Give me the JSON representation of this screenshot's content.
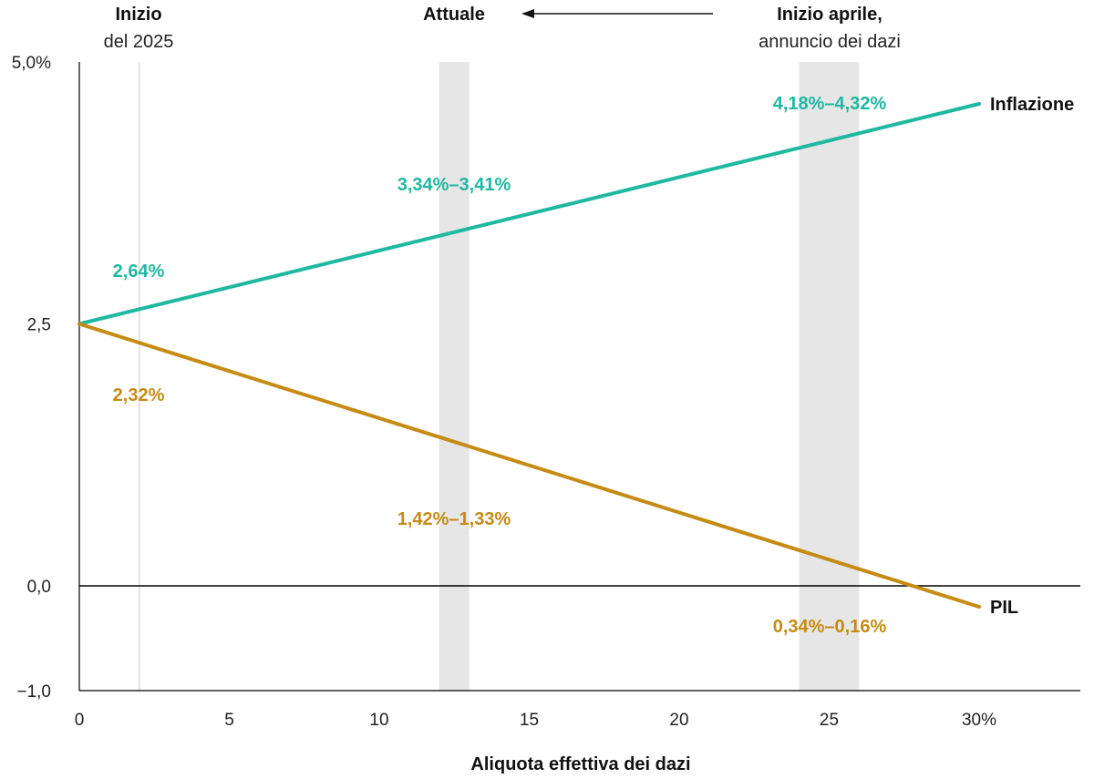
{
  "colors": {
    "inflation": "#1fb8a0",
    "gdp": "#c58b14",
    "band": "#e6e6e6",
    "axis": "#000000",
    "grid": "#dddddd"
  },
  "headers": {
    "start": {
      "title": "Inizio",
      "subtitle": "del 2025"
    },
    "current": {
      "title": "Attuale"
    },
    "april": {
      "title": "Inizio aprile,",
      "subtitle": "annuncio dei dazi"
    }
  },
  "chart_data": {
    "type": "line",
    "xlabel": "Aliquota effettiva dei dazi",
    "ylabel": "",
    "xlim": [
      0,
      33
    ],
    "ylim": [
      -1.0,
      5.0
    ],
    "x_ticks": [
      0,
      5,
      10,
      15,
      20,
      25,
      30
    ],
    "x_tick_labels": [
      "0",
      "5",
      "10",
      "15",
      "20",
      "25",
      "30%"
    ],
    "y_ticks": [
      -1.0,
      0.0,
      2.5,
      5.0
    ],
    "y_tick_labels": [
      "−1,0",
      "0,0",
      "2,5",
      "5,0%"
    ],
    "reference_vline_x": 2,
    "shaded_bands": [
      {
        "x0": 12,
        "x1": 13
      },
      {
        "x0": 24,
        "x1": 26
      }
    ],
    "zero_line": 0.0,
    "series": [
      {
        "name": "Inflazione",
        "x": [
          0,
          30
        ],
        "y": [
          2.5,
          4.6
        ],
        "color": "#1fb8a0"
      },
      {
        "name": "PIL",
        "x": [
          0,
          30
        ],
        "y": [
          2.5,
          -0.2
        ],
        "color": "#c58b14"
      }
    ],
    "annotations": [
      {
        "text": "2,64%",
        "series": "Inflazione"
      },
      {
        "text": "3,34%–3,41%",
        "series": "Inflazione"
      },
      {
        "text": "4,18%–4,32%",
        "series": "Inflazione"
      },
      {
        "text": "2,32%",
        "series": "PIL"
      },
      {
        "text": "1,42%–1,33%",
        "series": "PIL"
      },
      {
        "text": "0,34%–0,16%",
        "series": "PIL"
      }
    ]
  }
}
